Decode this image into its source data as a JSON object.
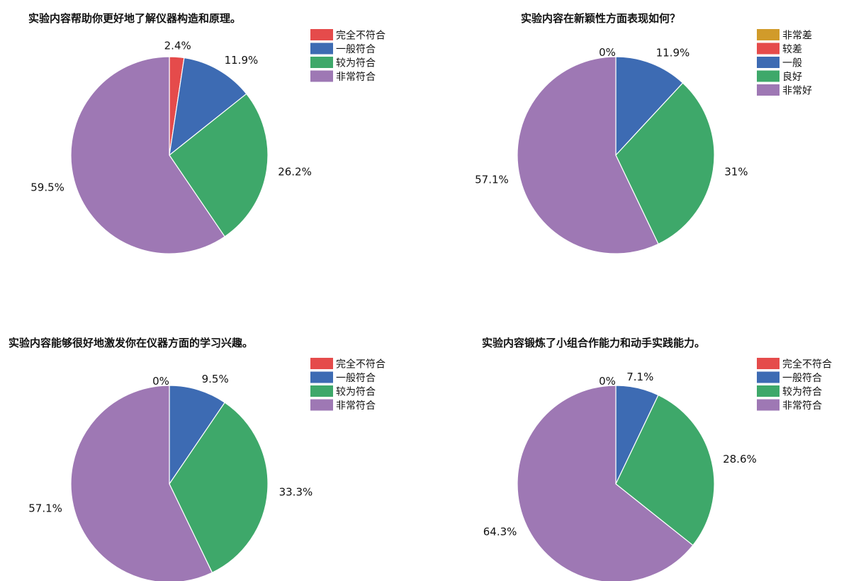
{
  "charts": [
    {
      "title": "实验内容帮助你更好地了解仪器构造和原理。",
      "chart_data": {
        "type": "pie",
        "title": "实验内容帮助你更好地了解仪器构造和原理。",
        "labels": [
          "完全不符合",
          "一般符合",
          "较为符合",
          "非常符合"
        ],
        "values": [
          2.4,
          11.9,
          26.2,
          59.5
        ],
        "value_labels": [
          "2.4%",
          "11.9%",
          "26.2%",
          "59.5%"
        ],
        "colors": [
          "#e54b4b",
          "#3d6bb3",
          "#3ea86a",
          "#9e78b4"
        ],
        "legend": "top-right"
      }
    },
    {
      "title": "实验内容在新颖性方面表现如何？",
      "chart_data": {
        "type": "pie",
        "title": "实验内容在新颖性方面表现如何？",
        "labels": [
          "非常差",
          "较差",
          "一般",
          "良好",
          "非常好"
        ],
        "values": [
          0,
          0,
          11.9,
          31,
          57.1
        ],
        "value_labels": [
          "",
          "0%",
          "11.9%",
          "31%",
          "57.1%"
        ],
        "colors": [
          "#d19b2a",
          "#e54b4b",
          "#3d6bb3",
          "#3ea86a",
          "#9e78b4"
        ],
        "legend": "top-right"
      }
    },
    {
      "title": "实验内容能够很好地激发你在仪器方面的学习兴趣。",
      "chart_data": {
        "type": "pie",
        "title": "实验内容能够很好地激发你在仪器方面的学习兴趣。",
        "labels": [
          "完全不符合",
          "一般符合",
          "较为符合",
          "非常符合"
        ],
        "values": [
          0,
          9.5,
          33.3,
          57.1
        ],
        "value_labels": [
          "0%",
          "9.5%",
          "33.3%",
          "57.1%"
        ],
        "colors": [
          "#e54b4b",
          "#3d6bb3",
          "#3ea86a",
          "#9e78b4"
        ],
        "legend": "top-right"
      }
    },
    {
      "title": "实验内容锻炼了小组合作能力和动手实践能力。",
      "chart_data": {
        "type": "pie",
        "title": "实验内容锻炼了小组合作能力和动手实践能力。",
        "labels": [
          "完全不符合",
          "一般符合",
          "较为符合",
          "非常符合"
        ],
        "values": [
          0,
          7.1,
          28.6,
          64.3
        ],
        "value_labels": [
          "0%",
          "7.1%",
          "28.6%",
          "64.3%"
        ],
        "colors": [
          "#e54b4b",
          "#3d6bb3",
          "#3ea86a",
          "#9e78b4"
        ],
        "legend": "top-right"
      }
    }
  ]
}
